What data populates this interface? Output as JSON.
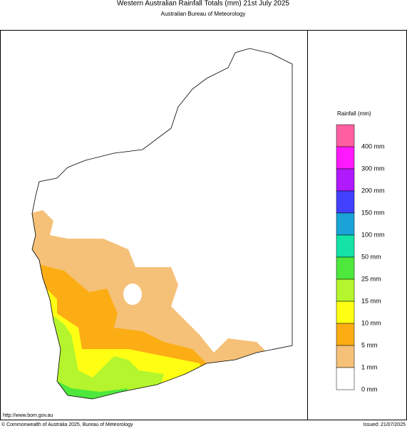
{
  "header": {
    "title": "Western Australian Rainfall Totals (mm) 21st July 2025",
    "subtitle": "Australian Bureau of Meteorology"
  },
  "legend": {
    "title": "Rainfall (mm)",
    "colors": [
      "#ff5fa0",
      "#ff19ff",
      "#b119ff",
      "#4141ff",
      "#1ba3d7",
      "#14e3a5",
      "#4ee83c",
      "#b4f52d",
      "#ffff14",
      "#fcad14",
      "#f5c178",
      "#ffffff"
    ],
    "labels": [
      "400 mm",
      "300 mm",
      "200 mm",
      "150 mm",
      "100 mm",
      "50 mm",
      "25 mm",
      "15 mm",
      "10 mm",
      "5 mm",
      "1 mm",
      "0 mm"
    ]
  },
  "footer": {
    "url": "http://www.bom.gov.au",
    "copyright": "© Commonwealth of Australia 2025, Bureau of Meteorology",
    "issued": "Issued: 21/07/2025"
  }
}
